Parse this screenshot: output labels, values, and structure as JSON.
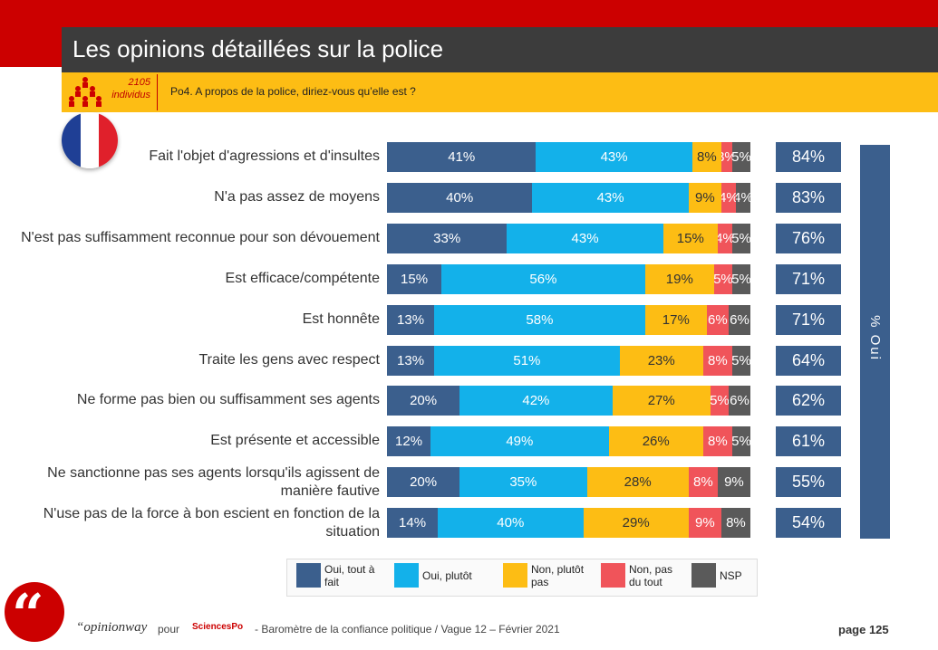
{
  "header": {
    "title": "Les opinions détaillées sur la police",
    "sample_count": "2105",
    "sample_unit": "individus",
    "question": "Po4. A propos de la police, diriez-vous qu’elle est ?"
  },
  "chart_data": {
    "type": "bar",
    "orientation": "horizontal-stacked-100",
    "categories": [
      "Fait l'objet d'agressions et d'insultes",
      "N'a pas assez de moyens",
      "N'est pas suffisamment reconnue pour son dévouement",
      "Est efficace/compétente",
      "Est honnête",
      "Traite les gens avec respect",
      "Ne forme pas bien ou suffisamment ses agents",
      "Est présente et accessible",
      "Ne sanctionne pas ses agents lorsqu'ils agissent de manière fautive",
      "N'use pas de la force à bon escient en fonction de la situation"
    ],
    "series": [
      {
        "name": "Oui, tout à fait",
        "color": "#3b5f8d",
        "text_color": "#ffffff",
        "values": [
          41,
          40,
          33,
          15,
          13,
          13,
          20,
          12,
          20,
          14
        ]
      },
      {
        "name": "Oui, plutôt",
        "color": "#13b1ea",
        "text_color": "#ffffff",
        "values": [
          43,
          43,
          43,
          56,
          58,
          51,
          42,
          49,
          35,
          40
        ]
      },
      {
        "name": "Non, plutôt pas",
        "color": "#fdbd14",
        "text_color": "#333333",
        "values": [
          8,
          9,
          15,
          19,
          17,
          23,
          27,
          26,
          28,
          29
        ]
      },
      {
        "name": "Non, pas du tout",
        "color": "#f0545a",
        "text_color": "#ffffff",
        "values": [
          3,
          4,
          4,
          5,
          6,
          8,
          5,
          8,
          8,
          9
        ]
      },
      {
        "name": "NSP",
        "color": "#5a5a5a",
        "text_color": "#ffffff",
        "values": [
          5,
          4,
          5,
          5,
          6,
          5,
          6,
          5,
          9,
          8
        ]
      }
    ],
    "totals": {
      "label": "% Oui",
      "values": [
        84,
        83,
        76,
        71,
        71,
        64,
        62,
        61,
        55,
        54
      ]
    },
    "value_suffix": "%",
    "legend_position": "bottom"
  },
  "legend": {
    "items": [
      "Oui, tout à\nfait",
      "Oui, plutôt",
      "Non, plutôt\npas",
      "Non, pas\ndu tout",
      "NSP"
    ]
  },
  "footer": {
    "brand": "“opinionway",
    "pour": "pour",
    "partner": "SciencesPo",
    "text": "- Baromètre de la confiance politique / Vague 12 – Février 2021",
    "page": "page 125"
  }
}
